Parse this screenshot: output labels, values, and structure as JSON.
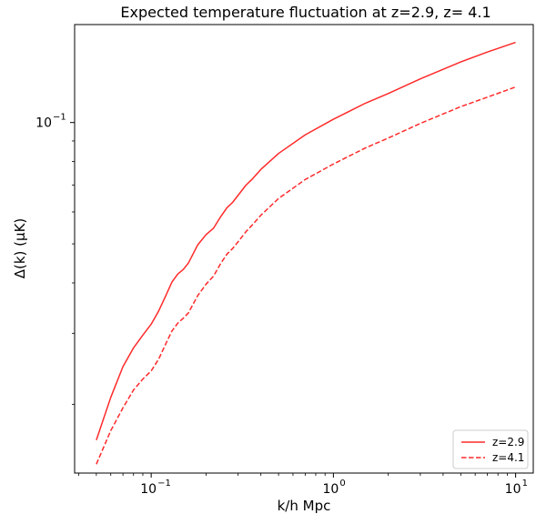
{
  "chart_data": {
    "type": "line",
    "title": "Expected temperature fluctuation at z=2.9, z= 4.1",
    "xlabel": "k/h Mpc",
    "ylabel": "Δ(k) (μK)",
    "xscale": "log",
    "yscale": "log",
    "xlim": [
      0.038,
      12.5
    ],
    "ylim": [
      0.0135,
      0.175
    ],
    "xticks": [
      {
        "value": 0.1,
        "base": "10",
        "exp": "−1"
      },
      {
        "value": 1,
        "base": "10",
        "exp": "0"
      },
      {
        "value": 10,
        "base": "10",
        "exp": "1"
      }
    ],
    "yticks": [
      {
        "value": 0.1,
        "base": "10",
        "exp": "−1"
      }
    ],
    "legend_position": "lower-right",
    "grid": false,
    "series": [
      {
        "name": "z=2.9",
        "color": "#ff2a2a",
        "linestyle": "solid",
        "x": [
          0.05,
          0.06,
          0.07,
          0.08,
          0.09,
          0.1,
          0.11,
          0.12,
          0.13,
          0.14,
          0.15,
          0.16,
          0.18,
          0.2,
          0.22,
          0.24,
          0.26,
          0.28,
          0.3,
          0.33,
          0.36,
          0.4,
          0.5,
          0.7,
          1.0,
          1.5,
          2,
          3,
          5,
          7,
          10
        ],
        "y": [
          0.0163,
          0.0208,
          0.0248,
          0.0276,
          0.0297,
          0.0316,
          0.0341,
          0.0371,
          0.0402,
          0.0421,
          0.0432,
          0.0448,
          0.0497,
          0.0527,
          0.0547,
          0.0583,
          0.0614,
          0.0634,
          0.066,
          0.0698,
          0.0725,
          0.0765,
          0.0838,
          0.0932,
          0.1019,
          0.1117,
          0.118,
          0.1283,
          0.1414,
          0.1496,
          0.1581
        ]
      },
      {
        "name": "z=4.1",
        "color": "#ff2a2a",
        "linestyle": "dashed",
        "x": [
          0.05,
          0.06,
          0.07,
          0.08,
          0.09,
          0.1,
          0.11,
          0.12,
          0.13,
          0.14,
          0.15,
          0.16,
          0.18,
          0.2,
          0.22,
          0.24,
          0.26,
          0.28,
          0.3,
          0.33,
          0.36,
          0.4,
          0.5,
          0.7,
          1.0,
          1.5,
          2,
          3,
          5,
          7,
          10
        ],
        "y": [
          0.0142,
          0.0172,
          0.0196,
          0.0217,
          0.0231,
          0.0242,
          0.0259,
          0.0282,
          0.0304,
          0.0318,
          0.0327,
          0.0337,
          0.0372,
          0.0397,
          0.0416,
          0.0446,
          0.0471,
          0.0487,
          0.0506,
          0.0535,
          0.0558,
          0.0589,
          0.0648,
          0.0722,
          0.0789,
          0.0865,
          0.0915,
          0.0995,
          0.1095,
          0.1156,
          0.1225
        ]
      }
    ]
  }
}
